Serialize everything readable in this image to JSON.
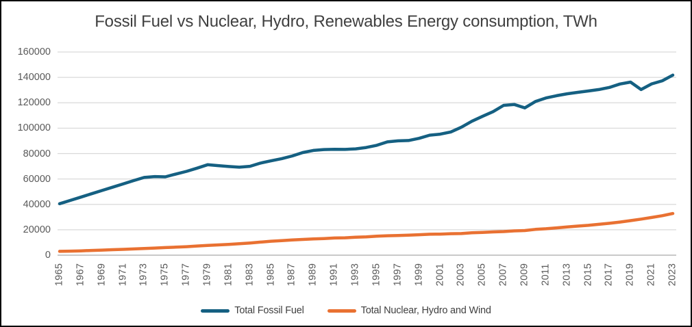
{
  "chart": {
    "title": "Fossil Fuel vs Nuclear, Hydro, Renewables Energy consumption, TWh"
  },
  "chart_data": {
    "type": "line",
    "title": "Fossil Fuel vs Nuclear, Hydro, Renewables Energy consumption, TWh",
    "xlabel": "",
    "ylabel": "",
    "ylim": [
      0,
      160000
    ],
    "ytick_step": 20000,
    "grid": "horizontal",
    "legend_position": "bottom",
    "x": [
      1965,
      1966,
      1967,
      1968,
      1969,
      1970,
      1971,
      1972,
      1973,
      1974,
      1975,
      1976,
      1977,
      1978,
      1979,
      1980,
      1981,
      1982,
      1983,
      1984,
      1985,
      1986,
      1987,
      1988,
      1989,
      1990,
      1991,
      1992,
      1993,
      1994,
      1995,
      1996,
      1997,
      1998,
      1999,
      2000,
      2001,
      2002,
      2003,
      2004,
      2005,
      2006,
      2007,
      2008,
      2009,
      2010,
      2011,
      2012,
      2013,
      2014,
      2015,
      2016,
      2017,
      2018,
      2019,
      2020,
      2021,
      2022,
      2023
    ],
    "xtick_labels": [
      "1965",
      "1967",
      "1969",
      "1971",
      "1973",
      "1975",
      "1977",
      "1979",
      "1981",
      "1983",
      "1985",
      "1987",
      "1989",
      "1991",
      "1993",
      "1995",
      "1997",
      "1999",
      "2001",
      "2003",
      "2005",
      "2007",
      "2009",
      "2011",
      "2013",
      "2015",
      "2017",
      "2019",
      "2021",
      "2023"
    ],
    "ytick_labels": [
      "0",
      "20000",
      "40000",
      "60000",
      "80000",
      "100000",
      "120000",
      "140000",
      "160000"
    ],
    "series": [
      {
        "name": "Total Fossil Fuel",
        "color": "#156082",
        "values": [
          40500,
          43100,
          45700,
          48300,
          50900,
          53500,
          56100,
          58700,
          61200,
          61900,
          61700,
          63900,
          66000,
          68500,
          71200,
          70500,
          69800,
          69300,
          70000,
          72500,
          74300,
          76000,
          78100,
          80800,
          82500,
          83200,
          83400,
          83300,
          83700,
          84800,
          86500,
          89200,
          90000,
          90300,
          92000,
          94500,
          95300,
          97000,
          100800,
          105500,
          109300,
          113000,
          118000,
          118700,
          116000,
          121000,
          123800,
          125600,
          127100,
          128200,
          129300,
          130400,
          132100,
          134800,
          136300,
          130400,
          134900,
          137300,
          141800
        ]
      },
      {
        "name": "Total Nuclear, Hydro and Wind",
        "color": "#E97132",
        "values": [
          3000,
          3200,
          3400,
          3700,
          4000,
          4300,
          4600,
          4900,
          5200,
          5600,
          6000,
          6300,
          6700,
          7200,
          7700,
          8100,
          8500,
          9000,
          9600,
          10300,
          11000,
          11500,
          12000,
          12400,
          12800,
          13100,
          13500,
          13700,
          14100,
          14400,
          14900,
          15300,
          15500,
          15800,
          16100,
          16500,
          16600,
          16900,
          17000,
          17600,
          17900,
          18300,
          18600,
          19100,
          19400,
          20300,
          20800,
          21500,
          22200,
          22900,
          23500,
          24300,
          25100,
          26100,
          27200,
          28400,
          29700,
          31100,
          32800
        ]
      }
    ]
  },
  "style": {
    "grid_color": "#D9D9D9",
    "axis_line_color": "#C9C9C9",
    "tick_text_color": "#595959",
    "title_color": "#404040",
    "background": "#FFFFFF",
    "border_color": "#000000"
  }
}
